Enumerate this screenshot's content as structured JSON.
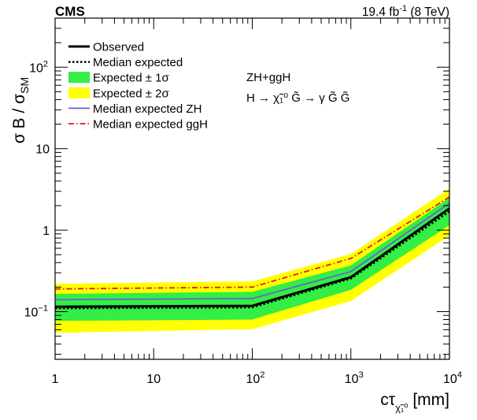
{
  "header": {
    "experiment": "CMS",
    "lumi_value": "19.4 fb",
    "lumi_exp": "-1",
    "energy": "(8 TeV)"
  },
  "annotation": {
    "line1": "ZH+ggH",
    "line2": "H → χ̃₁⁰ G̃ → γ G̃ G̃"
  },
  "chart_data": {
    "type": "line",
    "title": "",
    "xlabel": "cτ_χ̃₁⁰ [mm]",
    "ylabel": "σ B / σ_SM",
    "xscale": "log",
    "yscale": "log",
    "xlim": [
      1,
      10000
    ],
    "ylim": [
      0.026,
      400
    ],
    "x": [
      1,
      100,
      1000,
      10000
    ],
    "x_ticks": [
      {
        "v": 1,
        "base": "1",
        "exp": ""
      },
      {
        "v": 10,
        "base": "10",
        "exp": ""
      },
      {
        "v": 100,
        "base": "10",
        "exp": "2"
      },
      {
        "v": 1000,
        "base": "10",
        "exp": "3"
      },
      {
        "v": 10000,
        "base": "10",
        "exp": "4"
      }
    ],
    "y_ticks": [
      {
        "v": 0.1,
        "base": "10",
        "exp": "−1"
      },
      {
        "v": 1,
        "base": "1",
        "exp": ""
      },
      {
        "v": 10,
        "base": "10",
        "exp": ""
      },
      {
        "v": 100,
        "base": "10",
        "exp": "2"
      }
    ],
    "grid": false,
    "legend_position": "top-left",
    "series": [
      {
        "name": "Expected ± 2σ",
        "kind": "band",
        "color": "#FFFF00",
        "low": [
          0.055,
          0.061,
          0.135,
          0.86
        ],
        "high": [
          0.22,
          0.235,
          0.51,
          3.25
        ]
      },
      {
        "name": "Expected ± 1σ",
        "kind": "band",
        "color": "#33EE44",
        "low": [
          0.077,
          0.08,
          0.185,
          1.15
        ],
        "high": [
          0.165,
          0.175,
          0.37,
          2.5
        ]
      },
      {
        "name": "Median expected ZH",
        "kind": "line",
        "color": "#6666CC",
        "values": [
          0.14,
          0.145,
          0.31,
          2.15
        ]
      },
      {
        "name": "Median expected ggH",
        "kind": "line",
        "color": "#E31A1C",
        "values": [
          0.19,
          0.2,
          0.45,
          2.55
        ]
      },
      {
        "name": "Median expected",
        "kind": "line",
        "color": "#000000",
        "style": "dotted",
        "values": [
          0.11,
          0.113,
          0.255,
          1.7
        ]
      },
      {
        "name": "Observed",
        "kind": "line",
        "color": "#000000",
        "style": "solid",
        "values": [
          0.115,
          0.118,
          0.265,
          1.85
        ]
      }
    ]
  }
}
